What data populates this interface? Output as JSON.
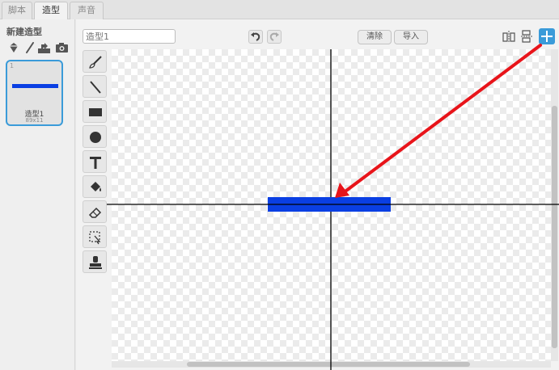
{
  "tabs": [
    {
      "label": "脚本"
    },
    {
      "label": "造型"
    },
    {
      "label": "声音"
    }
  ],
  "costumes_pane": {
    "new_costume_label": "新建造型",
    "items": [
      {
        "number": "1",
        "name": "造型1",
        "size": "89x11"
      }
    ]
  },
  "editor": {
    "costume_name_placeholder": "造型1",
    "clear_label": "清除",
    "import_label": "导入"
  },
  "colors": {
    "accent": "#3a9bd9",
    "shape_fill": "#0a3fe3",
    "annotation_arrow": "#e8141a"
  }
}
